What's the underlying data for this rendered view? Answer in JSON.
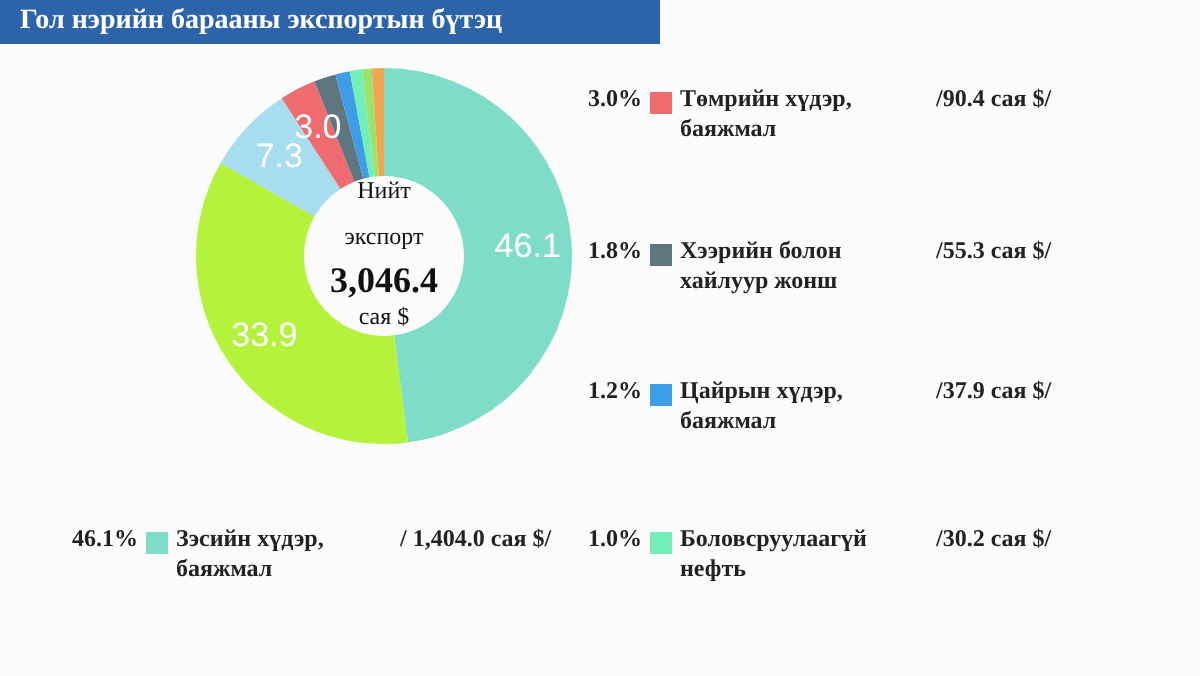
{
  "chart_data": {
    "type": "donut",
    "title": "Гол нэрийн барааны экспортын бүтэц",
    "categories": [
      "Зэсийн хүдэр, баяжмал",
      null,
      null,
      "Төмрийн хүдэр, баяжмал",
      "Хээрийн болон хайлуур жонш",
      "Цайрын хүдэр, баяжмал",
      "Боловсруулаагүй нефть",
      null,
      null
    ],
    "values": [
      46.1,
      33.9,
      7.3,
      3.0,
      1.8,
      1.2,
      1.0,
      0.8,
      1.0
    ],
    "colors": [
      "#7fdcc8",
      "#b4f23c",
      "#a8dcef",
      "#ee6b70",
      "#5f7580",
      "#3d9de6",
      "#72efb9",
      "#9be36b",
      "#f0a650"
    ],
    "value_labels": [
      "46.1",
      "33.9",
      "7.3",
      "3.0",
      null,
      null,
      null,
      null,
      null
    ],
    "annotations": [
      "Нийт",
      "экспорт",
      "3,046.4",
      "сая $",
      "46.1%",
      "/ 1,404.0 сая $/",
      "3.0%",
      "/90.4 сая $/",
      "1.8%",
      "/55.3 сая $/",
      "1.2%",
      "/37.9 сая $/",
      "1.0%",
      "/30.2 сая $/"
    ],
    "legend": "right"
  }
}
